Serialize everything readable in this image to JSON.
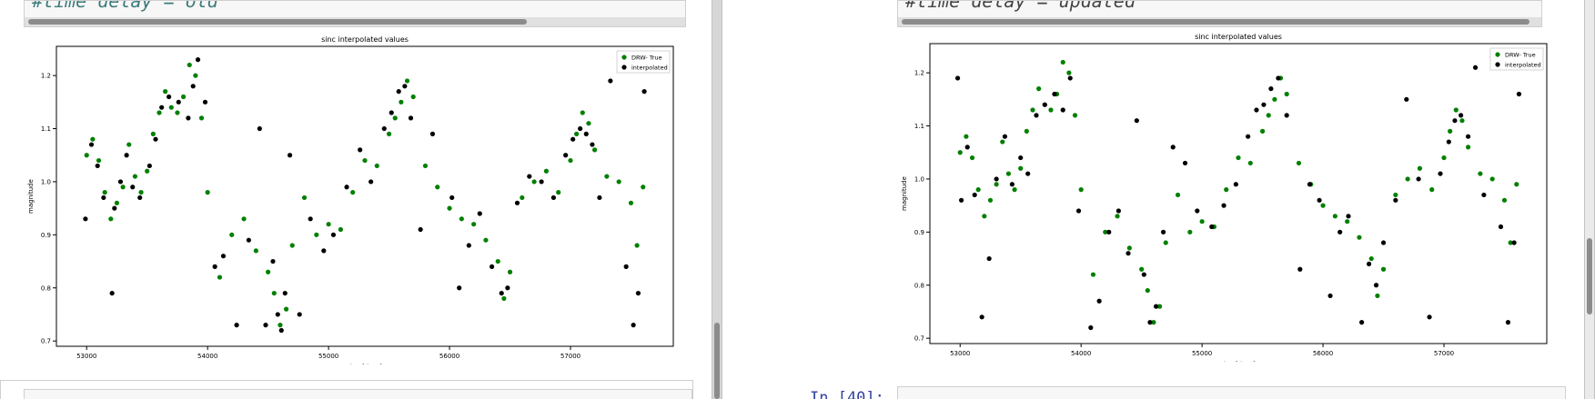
{
  "left_panel": {
    "code_text": "#time delay = old",
    "chart_data": {
      "type": "scatter",
      "title": "sinc interpolated values",
      "xlabel": "time[days]",
      "ylabel": "magnitude",
      "xlim": [
        52750,
        57850
      ],
      "ylim": [
        0.69,
        1.255
      ],
      "xticks": [
        53000,
        54000,
        55000,
        56000,
        57000
      ],
      "yticks": [
        0.7,
        0.8,
        0.9,
        1.0,
        1.1,
        1.2
      ],
      "grid": false,
      "legend_position": "top-right",
      "series": [
        {
          "name": "DRW- True",
          "color": "#008000",
          "x": [
            53000,
            53050,
            53100,
            53150,
            53200,
            53250,
            53300,
            53350,
            53400,
            53450,
            53500,
            53550,
            53600,
            53650,
            53700,
            53750,
            53800,
            53850,
            53900,
            53950,
            54000,
            54100,
            54200,
            54300,
            54400,
            54500,
            54550,
            54600,
            54650,
            54700,
            54800,
            54900,
            55000,
            55100,
            55200,
            55300,
            55400,
            55500,
            55550,
            55600,
            55650,
            55700,
            55800,
            55900,
            56000,
            56100,
            56200,
            56300,
            56400,
            56450,
            56500,
            56600,
            56700,
            56800,
            56900,
            57000,
            57050,
            57100,
            57150,
            57200,
            57300,
            57400,
            57500,
            57550,
            57600
          ],
          "y": [
            1.05,
            1.08,
            1.04,
            0.98,
            0.93,
            0.96,
            0.99,
            1.07,
            1.01,
            0.98,
            1.02,
            1.09,
            1.13,
            1.17,
            1.14,
            1.13,
            1.16,
            1.22,
            1.2,
            1.12,
            0.98,
            0.82,
            0.9,
            0.93,
            0.87,
            0.83,
            0.79,
            0.73,
            0.76,
            0.88,
            0.97,
            0.9,
            0.92,
            0.91,
            0.98,
            1.04,
            1.03,
            1.09,
            1.12,
            1.15,
            1.19,
            1.16,
            1.03,
            0.99,
            0.95,
            0.93,
            0.92,
            0.89,
            0.85,
            0.78,
            0.83,
            0.97,
            1.0,
            1.02,
            0.98,
            1.04,
            1.09,
            1.13,
            1.11,
            1.06,
            1.01,
            1.0,
            0.96,
            0.88,
            0.99
          ]
        },
        {
          "name": "interpolated",
          "color": "#000000",
          "x": [
            52990,
            53040,
            53090,
            53140,
            53210,
            53230,
            53280,
            53330,
            53380,
            53440,
            53520,
            53570,
            53620,
            53680,
            53760,
            53840,
            53880,
            53920,
            53980,
            54060,
            54130,
            54240,
            54340,
            54430,
            54480,
            54540,
            54580,
            54610,
            54640,
            54680,
            54760,
            54850,
            54960,
            55040,
            55150,
            55260,
            55350,
            55460,
            55520,
            55580,
            55630,
            55680,
            55760,
            55860,
            56020,
            56080,
            56160,
            56250,
            56350,
            56430,
            56480,
            56560,
            56660,
            56760,
            56860,
            56960,
            57020,
            57080,
            57130,
            57180,
            57240,
            57330,
            57420,
            57460,
            57520,
            57560,
            57610
          ],
          "y": [
            0.93,
            1.07,
            1.03,
            0.97,
            0.79,
            0.95,
            1.0,
            1.05,
            0.99,
            0.97,
            1.03,
            1.08,
            1.14,
            1.16,
            1.15,
            1.12,
            1.18,
            1.23,
            1.15,
            0.84,
            0.86,
            0.73,
            0.89,
            1.1,
            0.73,
            0.85,
            0.75,
            0.72,
            0.79,
            1.05,
            0.75,
            0.93,
            0.87,
            0.9,
            0.99,
            1.06,
            1.0,
            1.1,
            1.13,
            1.17,
            1.18,
            1.12,
            0.91,
            1.09,
            0.97,
            0.8,
            0.88,
            0.94,
            0.84,
            0.79,
            0.8,
            0.96,
            1.01,
            1.0,
            0.97,
            1.05,
            1.08,
            1.1,
            1.09,
            1.07,
            0.97,
            1.19,
            1.21,
            0.84,
            0.73,
            0.79,
            1.17
          ]
        }
      ]
    },
    "prompt_text": ""
  },
  "right_panel": {
    "code_text": "#time delay = updated",
    "prompt_text": "In [40]:",
    "chart_data": {
      "type": "scatter",
      "title": "sinc interpolated values",
      "xlabel": "time[days]",
      "ylabel": "magnitude",
      "xlim": [
        52750,
        57850
      ],
      "ylim": [
        0.69,
        1.255
      ],
      "xticks": [
        53000,
        54000,
        55000,
        56000,
        57000
      ],
      "yticks": [
        0.7,
        0.8,
        0.9,
        1.0,
        1.1,
        1.2
      ],
      "grid": false,
      "legend_position": "top-right",
      "series": [
        {
          "name": "DRW- True",
          "color": "#008000",
          "x": [
            53000,
            53050,
            53100,
            53150,
            53200,
            53250,
            53300,
            53350,
            53400,
            53450,
            53500,
            53550,
            53600,
            53650,
            53700,
            53750,
            53800,
            53850,
            53900,
            53950,
            54000,
            54100,
            54200,
            54300,
            54400,
            54500,
            54550,
            54600,
            54650,
            54700,
            54800,
            54900,
            55000,
            55100,
            55200,
            55300,
            55400,
            55500,
            55550,
            55600,
            55650,
            55700,
            55800,
            55900,
            56000,
            56100,
            56200,
            56300,
            56400,
            56450,
            56500,
            56600,
            56700,
            56800,
            56900,
            57000,
            57050,
            57100,
            57150,
            57200,
            57300,
            57400,
            57500,
            57550,
            57600
          ],
          "y": [
            1.05,
            1.08,
            1.04,
            0.98,
            0.93,
            0.96,
            0.99,
            1.07,
            1.01,
            0.98,
            1.02,
            1.09,
            1.13,
            1.17,
            1.14,
            1.13,
            1.16,
            1.22,
            1.2,
            1.12,
            0.98,
            0.82,
            0.9,
            0.93,
            0.87,
            0.83,
            0.79,
            0.73,
            0.76,
            0.88,
            0.97,
            0.9,
            0.92,
            0.91,
            0.98,
            1.04,
            1.03,
            1.09,
            1.12,
            1.15,
            1.19,
            1.16,
            1.03,
            0.99,
            0.95,
            0.93,
            0.92,
            0.89,
            0.85,
            0.78,
            0.83,
            0.97,
            1.0,
            1.02,
            0.98,
            1.04,
            1.09,
            1.13,
            1.11,
            1.06,
            1.01,
            1.0,
            0.96,
            0.88,
            0.99
          ]
        },
        {
          "name": "interpolated",
          "color": "#000000",
          "x": [
            52980,
            53010,
            53060,
            53120,
            53180,
            53240,
            53300,
            53370,
            53430,
            53500,
            53560,
            53630,
            53700,
            53780,
            53850,
            53910,
            53980,
            54080,
            54150,
            54230,
            54310,
            54390,
            54460,
            54520,
            54570,
            54620,
            54680,
            54760,
            54860,
            54960,
            55080,
            55180,
            55280,
            55380,
            55450,
            55510,
            55570,
            55630,
            55700,
            55810,
            55890,
            55970,
            56060,
            56140,
            56210,
            56320,
            56380,
            56440,
            56500,
            56600,
            56690,
            56790,
            56880,
            56970,
            57040,
            57090,
            57140,
            57200,
            57260,
            57330,
            57400,
            57470,
            57530,
            57580,
            57620
          ],
          "y": [
            1.19,
            0.96,
            1.06,
            0.97,
            0.74,
            0.85,
            1.0,
            1.08,
            0.99,
            1.04,
            1.01,
            1.12,
            1.14,
            1.16,
            1.13,
            1.19,
            0.94,
            0.72,
            0.77,
            0.9,
            0.94,
            0.86,
            1.11,
            0.82,
            0.73,
            0.76,
            0.9,
            1.06,
            1.03,
            0.94,
            0.91,
            0.95,
            0.99,
            1.08,
            1.13,
            1.14,
            1.17,
            1.19,
            1.12,
            0.83,
            0.99,
            0.96,
            0.78,
            0.9,
            0.93,
            0.73,
            0.84,
            0.8,
            0.88,
            0.96,
            1.15,
            1.0,
            0.74,
            1.01,
            1.07,
            1.11,
            1.12,
            1.08,
            1.21,
            0.97,
            1.23,
            0.91,
            0.73,
            0.88,
            1.16
          ]
        }
      ]
    }
  }
}
